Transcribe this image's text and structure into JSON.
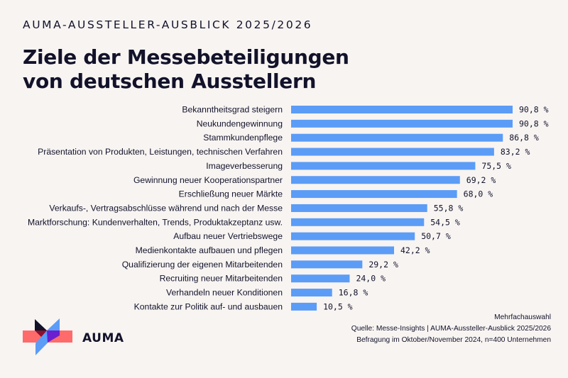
{
  "header": {
    "kicker": "AUMA-AUSSTELLER-AUSBLICK 2025/2026",
    "title_line1": "Ziele der Messebeteiligungen",
    "title_line2": "von deutschen Ausstellern"
  },
  "colors": {
    "background": "#f8f4f2",
    "bar": "#5b9cf7",
    "text": "#12122a",
    "logo_red": "#ff6b6b",
    "logo_blue": "#5b9cf7",
    "logo_dark": "#12122a",
    "logo_purple": "#6a1fd0",
    "logo_crimson": "#8a1030"
  },
  "chart_data": {
    "type": "bar",
    "orientation": "horizontal",
    "title": "Ziele der Messebeteiligungen von deutschen Ausstellern",
    "xlabel": "",
    "ylabel": "",
    "unit": "%",
    "xlim": [
      0,
      100
    ],
    "grid": false,
    "legend": "none",
    "categories": [
      "Bekanntheitsgrad steigern",
      "Neukundengewinnung",
      "Stammkundenpflege",
      "Präsentation von Produkten, Leistungen, technischen Verfahren",
      "Imageverbesserung",
      "Gewinnung neuer Kooperationspartner",
      "Erschließung neuer Märkte",
      "Verkaufs-, Vertragsabschlüsse während und nach der Messe",
      "Marktforschung: Kundenverhalten, Trends, Produktakzeptanz usw.",
      "Aufbau neuer Vertriebswege",
      "Medienkontakte aufbauen und pflegen",
      "Qualifizierung der eigenen Mitarbeitenden",
      "Recruiting neuer Mitarbeitenden",
      "Verhandeln neuer Konditionen",
      "Kontakte zur Politik auf- und ausbauen"
    ],
    "values": [
      90.8,
      90.8,
      86.8,
      83.2,
      75.5,
      69.2,
      68.0,
      55.8,
      54.5,
      50.7,
      42.2,
      29.2,
      24.0,
      16.8,
      10.5
    ],
    "value_labels": [
      "90,8 %",
      "90,8 %",
      "86,8 %",
      "83,2 %",
      "75,5 %",
      "69,2 %",
      "68,0 %",
      "55,8 %",
      "54,5 %",
      "50,7 %",
      "42,2 %",
      "29,2 %",
      "24,0 %",
      "16,8 %",
      "10,5 %"
    ]
  },
  "footnotes": {
    "note": "Mehrfachauswahl",
    "source": "Quelle: Messe-Insights | AUMA-Aussteller-Ausblick 2025/2026",
    "survey": "Befragung im Oktober/November 2024, n=400 Unternehmen"
  },
  "logo": {
    "wordmark": "AUMA"
  }
}
